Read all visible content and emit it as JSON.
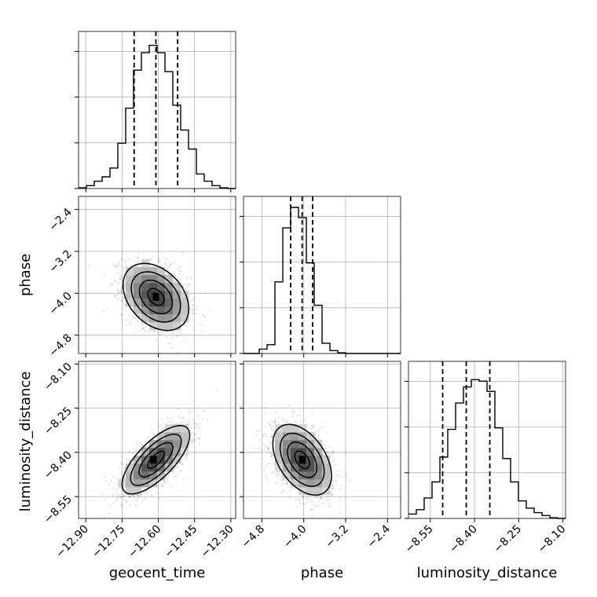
{
  "chart_data": {
    "type": "corner",
    "parameters": [
      "geocent_time",
      "phase",
      "luminosity_distance"
    ],
    "labels": {
      "geocent_time": "geocent_time",
      "phase": "phase",
      "luminosity_distance": "luminosity_distance"
    },
    "ranges": {
      "geocent_time": [
        -12.93,
        -12.28
      ],
      "phase": [
        -5.15,
        -2.15
      ],
      "luminosity_distance": [
        -8.624,
        -8.091
      ]
    },
    "ticks": {
      "geocent_time": {
        "values": [
          -12.9,
          -12.75,
          -12.6,
          -12.45,
          -12.3
        ],
        "labels": [
          "−12.90",
          "−12.75",
          "−12.60",
          "−12.45",
          "−12.30"
        ]
      },
      "phase": {
        "values": [
          -4.8,
          -4.0,
          -3.2,
          -2.4
        ],
        "labels": [
          "−4.8",
          "−4.0",
          "−3.2",
          "−2.4"
        ]
      },
      "luminosity_distance": {
        "values": [
          -8.55,
          -8.4,
          -8.25,
          -8.1
        ],
        "labels": [
          "−8.55",
          "−8.40",
          "−8.25",
          "−8.10"
        ]
      }
    },
    "quantiles": {
      "geocent_time": [
        -12.7,
        -12.61,
        -12.52
      ],
      "phase": [
        -4.25,
        -4.03,
        -3.83
      ],
      "luminosity_distance": [
        -8.508,
        -8.428,
        -8.348
      ]
    },
    "histograms": {
      "geocent_time": {
        "edges_range": [
          -12.93,
          -12.28
        ],
        "bins": 20,
        "counts": [
          0.005,
          0.02,
          0.05,
          0.08,
          0.14,
          0.31,
          0.55,
          0.81,
          0.93,
          0.98,
          0.93,
          0.8,
          0.57,
          0.4,
          0.27,
          0.1,
          0.05,
          0.02,
          0.005,
          0.0
        ]
      },
      "phase": {
        "edges_range": [
          -5.15,
          -2.15
        ],
        "bins": 20,
        "counts": [
          0.0,
          0.0,
          0.03,
          0.06,
          0.49,
          0.86,
          1.0,
          0.93,
          0.62,
          0.33,
          0.07,
          0.02,
          0.005,
          0.0,
          0.0,
          0.0,
          0.0,
          0.0,
          0.0,
          0.0
        ]
      },
      "luminosity_distance": {
        "edges_range": [
          -8.624,
          -8.091
        ],
        "bins": 20,
        "counts": [
          0.03,
          0.06,
          0.14,
          0.25,
          0.42,
          0.61,
          0.79,
          0.9,
          0.95,
          0.94,
          0.87,
          0.62,
          0.41,
          0.25,
          0.12,
          0.07,
          0.04,
          0.02,
          0.005,
          0.0
        ]
      }
    },
    "pairs": [
      {
        "x": "geocent_time",
        "y": "phase",
        "center": [
          -12.61,
          -4.07
        ],
        "sigma": [
          0.068,
          0.32
        ],
        "rho": -0.35,
        "mode": [
          -12.61,
          -4.07
        ]
      },
      {
        "x": "geocent_time",
        "y": "luminosity_distance",
        "center": [
          -12.61,
          -8.425
        ],
        "sigma": [
          0.07,
          0.058
        ],
        "rho": 0.72,
        "mode": [
          -12.62,
          -8.425
        ]
      },
      {
        "x": "phase",
        "y": "luminosity_distance",
        "center": [
          -4.03,
          -8.425
        ],
        "sigma": [
          0.28,
          0.06
        ],
        "rho": -0.45,
        "mode": [
          -4.03,
          -8.425
        ]
      }
    ],
    "contour_levels_sigma": [
      0.5,
      1.0,
      1.5,
      2.0
    ],
    "grid": true
  }
}
